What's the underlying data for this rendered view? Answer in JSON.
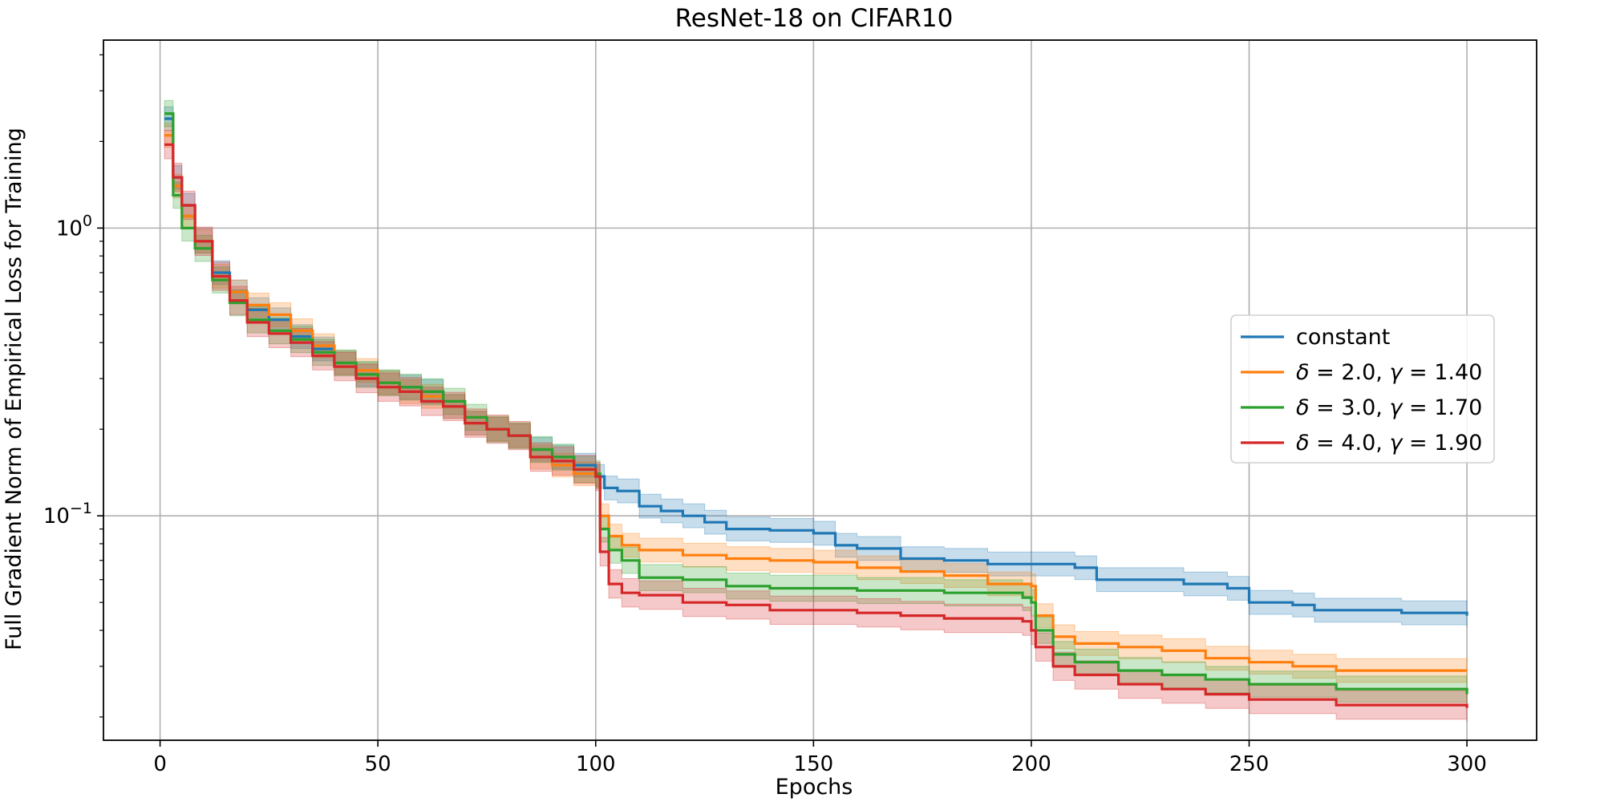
{
  "chart_data": {
    "type": "line",
    "title": "ResNet-18 on CIFAR10",
    "xlabel": "Epochs",
    "ylabel": "Full Gradient Norm of Empirical Loss for Training",
    "xlim": [
      -13,
      316
    ],
    "ylim": [
      0.0166,
      4.5
    ],
    "yscale": "log",
    "grid": true,
    "legend_position": "center-right",
    "x_ticks": [
      {
        "value": 0,
        "label": "0"
      },
      {
        "value": 50,
        "label": "50"
      },
      {
        "value": 100,
        "label": "100"
      },
      {
        "value": 150,
        "label": "150"
      },
      {
        "value": 200,
        "label": "200"
      },
      {
        "value": 250,
        "label": "250"
      },
      {
        "value": 300,
        "label": "300"
      }
    ],
    "y_ticks": [
      {
        "value": 1,
        "base": "10",
        "exp": "0"
      },
      {
        "value": 0.1,
        "base": "10",
        "exp": "−1"
      }
    ],
    "series": [
      {
        "name": "constant",
        "legend_label": {
          "a": "constant"
        },
        "color": "#1f77b4",
        "band": 0.1,
        "points": [
          [
            1,
            2.4
          ],
          [
            3,
            1.5
          ],
          [
            5,
            1.2
          ],
          [
            8,
            0.9
          ],
          [
            12,
            0.7
          ],
          [
            16,
            0.6
          ],
          [
            20,
            0.52
          ],
          [
            25,
            0.48
          ],
          [
            30,
            0.42
          ],
          [
            35,
            0.38
          ],
          [
            40,
            0.34
          ],
          [
            45,
            0.31
          ],
          [
            50,
            0.29
          ],
          [
            55,
            0.28
          ],
          [
            60,
            0.27
          ],
          [
            65,
            0.24
          ],
          [
            70,
            0.21
          ],
          [
            75,
            0.2
          ],
          [
            80,
            0.19
          ],
          [
            85,
            0.17
          ],
          [
            90,
            0.16
          ],
          [
            95,
            0.15
          ],
          [
            100,
            0.137
          ],
          [
            102,
            0.125
          ],
          [
            105,
            0.122
          ],
          [
            110,
            0.108
          ],
          [
            115,
            0.104
          ],
          [
            120,
            0.1
          ],
          [
            125,
            0.095
          ],
          [
            130,
            0.09
          ],
          [
            140,
            0.089
          ],
          [
            150,
            0.087
          ],
          [
            155,
            0.079
          ],
          [
            160,
            0.077
          ],
          [
            170,
            0.071
          ],
          [
            180,
            0.07
          ],
          [
            190,
            0.068
          ],
          [
            200,
            0.068
          ],
          [
            210,
            0.066
          ],
          [
            215,
            0.06
          ],
          [
            225,
            0.06
          ],
          [
            235,
            0.058
          ],
          [
            245,
            0.056
          ],
          [
            250,
            0.05
          ],
          [
            260,
            0.049
          ],
          [
            265,
            0.047
          ],
          [
            275,
            0.047
          ],
          [
            285,
            0.046
          ],
          [
            300,
            0.045
          ]
        ]
      },
      {
        "name": "δ = 2.0, γ = 1.40",
        "legend_label": {
          "a": "δ",
          "b": " = 2.0, ",
          "c": "γ",
          "d": " = 1.40"
        },
        "color": "#ff7f0e",
        "band": 0.1,
        "points": [
          [
            1,
            2.1
          ],
          [
            3,
            1.4
          ],
          [
            5,
            1.1
          ],
          [
            8,
            0.9
          ],
          [
            12,
            0.68
          ],
          [
            16,
            0.6
          ],
          [
            20,
            0.54
          ],
          [
            25,
            0.5
          ],
          [
            30,
            0.44
          ],
          [
            35,
            0.39
          ],
          [
            40,
            0.34
          ],
          [
            45,
            0.32
          ],
          [
            50,
            0.29
          ],
          [
            55,
            0.27
          ],
          [
            60,
            0.26
          ],
          [
            65,
            0.24
          ],
          [
            70,
            0.21
          ],
          [
            75,
            0.2
          ],
          [
            80,
            0.19
          ],
          [
            85,
            0.16
          ],
          [
            90,
            0.15
          ],
          [
            95,
            0.14
          ],
          [
            100,
            0.137
          ],
          [
            101,
            0.1
          ],
          [
            103,
            0.085
          ],
          [
            106,
            0.079
          ],
          [
            110,
            0.076
          ],
          [
            120,
            0.073
          ],
          [
            130,
            0.071
          ],
          [
            140,
            0.07
          ],
          [
            150,
            0.069
          ],
          [
            160,
            0.066
          ],
          [
            170,
            0.064
          ],
          [
            180,
            0.062
          ],
          [
            190,
            0.058
          ],
          [
            200,
            0.057
          ],
          [
            201,
            0.045
          ],
          [
            205,
            0.038
          ],
          [
            210,
            0.036
          ],
          [
            220,
            0.035
          ],
          [
            230,
            0.034
          ],
          [
            240,
            0.032
          ],
          [
            250,
            0.031
          ],
          [
            260,
            0.03
          ],
          [
            270,
            0.029
          ],
          [
            280,
            0.029
          ],
          [
            300,
            0.029
          ]
        ]
      },
      {
        "name": "δ = 3.0, γ = 1.70",
        "legend_label": {
          "a": "δ",
          "b": " = 3.0, ",
          "c": "γ",
          "d": " = 1.70"
        },
        "color": "#2ca02c",
        "band": 0.11,
        "points": [
          [
            1,
            2.5
          ],
          [
            3,
            1.3
          ],
          [
            5,
            1.0
          ],
          [
            8,
            0.85
          ],
          [
            12,
            0.66
          ],
          [
            16,
            0.55
          ],
          [
            20,
            0.48
          ],
          [
            25,
            0.44
          ],
          [
            30,
            0.41
          ],
          [
            35,
            0.37
          ],
          [
            40,
            0.34
          ],
          [
            45,
            0.31
          ],
          [
            50,
            0.29
          ],
          [
            55,
            0.28
          ],
          [
            60,
            0.27
          ],
          [
            65,
            0.25
          ],
          [
            70,
            0.22
          ],
          [
            75,
            0.2
          ],
          [
            80,
            0.19
          ],
          [
            85,
            0.17
          ],
          [
            90,
            0.16
          ],
          [
            95,
            0.145
          ],
          [
            100,
            0.14
          ],
          [
            101,
            0.09
          ],
          [
            103,
            0.076
          ],
          [
            106,
            0.07
          ],
          [
            110,
            0.061
          ],
          [
            120,
            0.06
          ],
          [
            130,
            0.057
          ],
          [
            140,
            0.056
          ],
          [
            150,
            0.056
          ],
          [
            160,
            0.055
          ],
          [
            170,
            0.055
          ],
          [
            180,
            0.054
          ],
          [
            190,
            0.054
          ],
          [
            198,
            0.052
          ],
          [
            200,
            0.05
          ],
          [
            201,
            0.04
          ],
          [
            205,
            0.033
          ],
          [
            210,
            0.031
          ],
          [
            220,
            0.029
          ],
          [
            230,
            0.028
          ],
          [
            240,
            0.027
          ],
          [
            250,
            0.026
          ],
          [
            260,
            0.026
          ],
          [
            270,
            0.025
          ],
          [
            280,
            0.025
          ],
          [
            300,
            0.024
          ]
        ]
      },
      {
        "name": "δ = 4.0, γ = 1.90",
        "legend_label": {
          "a": "δ",
          "b": " = 4.0, ",
          "c": "γ",
          "d": " = 1.90"
        },
        "color": "#d62728",
        "band": 0.12,
        "points": [
          [
            1,
            1.95
          ],
          [
            3,
            1.5
          ],
          [
            5,
            1.2
          ],
          [
            8,
            0.9
          ],
          [
            12,
            0.68
          ],
          [
            16,
            0.56
          ],
          [
            20,
            0.47
          ],
          [
            25,
            0.43
          ],
          [
            30,
            0.4
          ],
          [
            35,
            0.36
          ],
          [
            40,
            0.33
          ],
          [
            45,
            0.3
          ],
          [
            50,
            0.28
          ],
          [
            55,
            0.27
          ],
          [
            60,
            0.25
          ],
          [
            65,
            0.24
          ],
          [
            70,
            0.21
          ],
          [
            75,
            0.2
          ],
          [
            80,
            0.19
          ],
          [
            85,
            0.16
          ],
          [
            90,
            0.155
          ],
          [
            95,
            0.145
          ],
          [
            100,
            0.137
          ],
          [
            101,
            0.075
          ],
          [
            103,
            0.058
          ],
          [
            106,
            0.054
          ],
          [
            110,
            0.053
          ],
          [
            120,
            0.05
          ],
          [
            130,
            0.049
          ],
          [
            140,
            0.047
          ],
          [
            150,
            0.047
          ],
          [
            160,
            0.046
          ],
          [
            170,
            0.045
          ],
          [
            180,
            0.044
          ],
          [
            190,
            0.044
          ],
          [
            198,
            0.043
          ],
          [
            200,
            0.04
          ],
          [
            201,
            0.035
          ],
          [
            205,
            0.03
          ],
          [
            210,
            0.028
          ],
          [
            220,
            0.026
          ],
          [
            230,
            0.025
          ],
          [
            240,
            0.024
          ],
          [
            250,
            0.023
          ],
          [
            260,
            0.023
          ],
          [
            270,
            0.022
          ],
          [
            280,
            0.022
          ],
          [
            300,
            0.0215
          ]
        ]
      }
    ]
  }
}
